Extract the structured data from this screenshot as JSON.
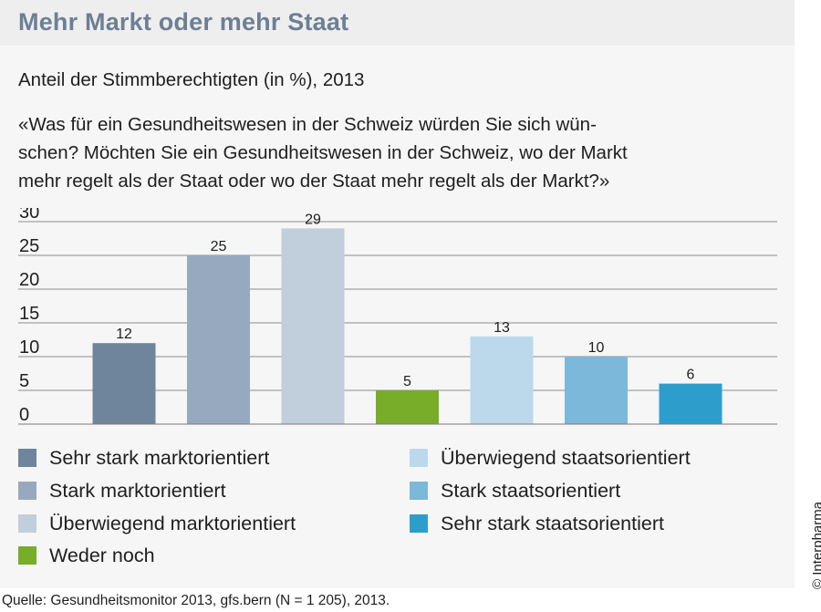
{
  "title": "Mehr Markt oder mehr Staat",
  "subtitle": "Anteil der Stimmberechtigten (in %), 2013",
  "question": [
    "«Was für ein Gesundheitswesen in der Schweiz würden Sie sich wün-",
    "schen? Möchten Sie ein Gesundheitswesen in der Schweiz, wo der Markt",
    "mehr regelt als der Staat oder wo der Staat mehr regelt als der Markt?»"
  ],
  "chart_data": {
    "type": "bar",
    "title": "Mehr Markt oder mehr Staat",
    "subtitle": "Anteil der Stimmberechtigten (in %), 2013",
    "categories": [
      "Sehr stark marktorientiert",
      "Stark marktorientiert",
      "Überwiegend marktorientiert",
      "Weder noch",
      "Überwiegend staatsorientiert",
      "Stark staatsorientiert",
      "Sehr stark staatsorientiert"
    ],
    "values": [
      12,
      25,
      29,
      5,
      13,
      10,
      6
    ],
    "colors": [
      "#6e859b",
      "#97a9bf",
      "#c1cedb",
      "#78ad2a",
      "#bcd9ec",
      "#7bb8d9",
      "#2d9ecb"
    ],
    "yticks": [
      0,
      5,
      10,
      15,
      20,
      25,
      30
    ],
    "ylim": [
      0,
      30
    ],
    "xlabel": "",
    "ylabel": "",
    "grid": true,
    "legend_position": "bottom"
  },
  "legend": [
    {
      "label": "Sehr stark marktorientiert",
      "color": "#6e859b"
    },
    {
      "label": "Stark marktorientiert",
      "color": "#97a9bf"
    },
    {
      "label": "Überwiegend marktorientiert",
      "color": "#c1cedb"
    },
    {
      "label": "Weder noch",
      "color": "#78ad2a"
    },
    {
      "label": "Überwiegend staatsorientiert",
      "color": "#bcd9ec"
    },
    {
      "label": "Stark staatsorientiert",
      "color": "#7bb8d9"
    },
    {
      "label": "Sehr stark staatsorientiert",
      "color": "#2d9ecb"
    }
  ],
  "source": "Quelle: Gesundheitsmonitor 2013, gfs.bern (N = 1 205), 2013.",
  "copyright": "© Interpharma"
}
